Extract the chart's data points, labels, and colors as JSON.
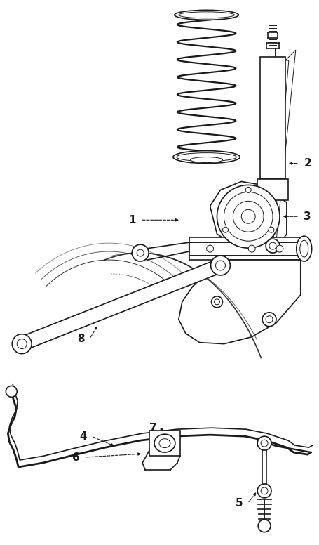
{
  "bg_color": "#ffffff",
  "line_color": "#1a1a1a",
  "fig_width": 4.56,
  "fig_height": 7.76,
  "dpi": 100,
  "label_fontsize": 11,
  "label_fontweight": "bold"
}
